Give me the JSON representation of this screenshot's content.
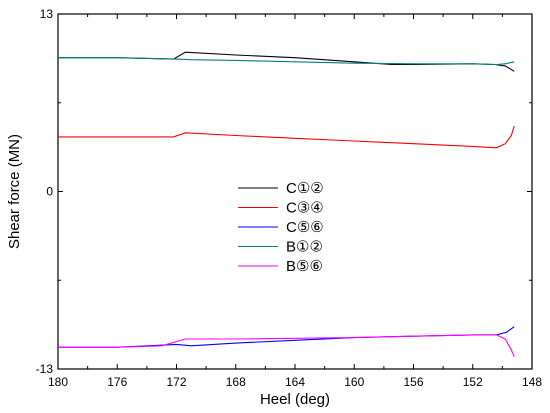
{
  "chart_data": {
    "type": "line",
    "title": "",
    "xlabel": "Heel (deg)",
    "ylabel": "Shear force (MN)",
    "xlim": [
      180,
      148
    ],
    "x_reversed": true,
    "ylim": [
      -13,
      13
    ],
    "x_ticks": [
      180,
      176,
      172,
      168,
      164,
      160,
      156,
      152,
      148
    ],
    "x_tick_labels": [
      "180",
      "176",
      "172",
      "168",
      "164",
      "160",
      "156",
      "152",
      "148"
    ],
    "y_ticks": [
      -13,
      0,
      13
    ],
    "y_tick_labels": [
      "-13",
      "0",
      "13"
    ],
    "grid": false,
    "legend": "center-left",
    "series": [
      {
        "name": "C①②",
        "color": "#000000",
        "x": [
          180,
          176,
          172.2,
          171.4,
          168,
          164,
          160,
          157.5,
          156,
          152,
          150.5,
          149.8,
          149.2
        ],
        "y": [
          9.8,
          9.8,
          9.7,
          10.2,
          10.0,
          9.8,
          9.5,
          9.3,
          9.3,
          9.35,
          9.3,
          9.2,
          8.8
        ]
      },
      {
        "name": "C③④",
        "color": "#ff0000",
        "x": [
          180,
          176,
          172.2,
          171.4,
          168,
          164,
          160,
          156,
          152,
          150.4,
          149.8,
          149.4,
          149.2
        ],
        "y": [
          4.0,
          4.0,
          4.0,
          4.3,
          4.1,
          3.9,
          3.7,
          3.5,
          3.3,
          3.2,
          3.5,
          4.1,
          4.8
        ]
      },
      {
        "name": "C⑤⑥",
        "color": "#0000ff",
        "x": [
          180,
          176,
          172,
          171,
          168,
          164,
          160,
          156,
          152,
          150.4,
          149.7,
          149.2
        ],
        "y": [
          -11.4,
          -11.4,
          -11.2,
          -11.3,
          -11.1,
          -10.9,
          -10.7,
          -10.6,
          -10.5,
          -10.5,
          -10.3,
          -9.9
        ]
      },
      {
        "name": "B①②",
        "color": "#008080",
        "x": [
          180,
          176,
          172,
          171,
          168,
          164,
          160,
          156,
          152,
          150.4,
          149.8,
          149.2
        ],
        "y": [
          9.8,
          9.8,
          9.7,
          9.65,
          9.6,
          9.5,
          9.4,
          9.35,
          9.35,
          9.3,
          9.35,
          9.5
        ]
      },
      {
        "name": "B⑤⑥",
        "color": "#ff00ff",
        "x": [
          180,
          176,
          173,
          171.4,
          168,
          164,
          160,
          156,
          152,
          150.4,
          149.8,
          149.4,
          149.2
        ],
        "y": [
          -11.4,
          -11.4,
          -11.3,
          -10.8,
          -10.8,
          -10.75,
          -10.7,
          -10.6,
          -10.5,
          -10.5,
          -10.8,
          -11.6,
          -12.1
        ]
      }
    ]
  }
}
